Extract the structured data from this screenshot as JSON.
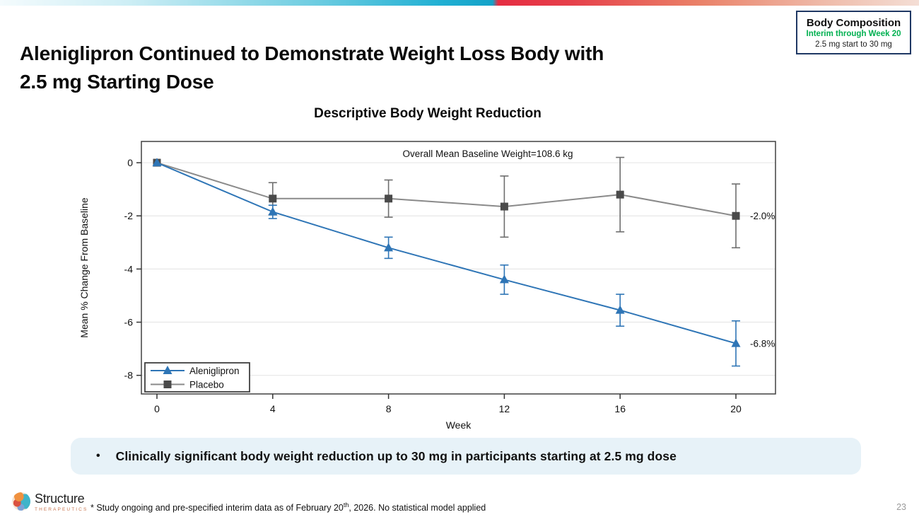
{
  "slide": {
    "title_line1": "Aleniglipron Continued to Demonstrate Weight Loss Body with",
    "title_line2": "2.5 mg Starting Dose",
    "page_number": "23"
  },
  "badge": {
    "title": "Body Composition",
    "subtitle": "Interim through Week 20",
    "detail": "2.5 mg start to 30 mg",
    "subtitle_color": "#00b050",
    "border_color": "#1f3864"
  },
  "callout": {
    "bullet": "•",
    "text": "Clinically significant body weight reduction up to 30 mg in participants starting at 2.5 mg dose",
    "bg_color": "#e7f2f8"
  },
  "footer": {
    "logo_name": "Structure",
    "logo_sub": "THERAPEUTICS",
    "footnote_pre": "* Study ongoing and pre-specified interim data as of February 20",
    "footnote_sup": "th",
    "footnote_post": ", 2026. No statistical model applied"
  },
  "chart_data": {
    "type": "line",
    "title": "Descriptive Body Weight Reduction",
    "annotation": "Overall Mean Baseline Weight=108.6 kg",
    "xlabel": "Week",
    "ylabel": "Mean % Change From Baseline",
    "x": [
      0,
      4,
      8,
      12,
      16,
      20
    ],
    "xticks": [
      0,
      4,
      8,
      12,
      16,
      20
    ],
    "yticks": [
      0,
      -2,
      -4,
      -6,
      -8
    ],
    "ylim": [
      -8.7,
      0.8
    ],
    "grid": true,
    "legend_position": "bottom-left",
    "series": [
      {
        "name": "Aleniglipron",
        "marker": "triangle",
        "color": "#2e75b6",
        "marker_color": "#2e75b6",
        "error_color": "#2e75b6",
        "values": [
          0,
          -1.85,
          -3.2,
          -4.4,
          -5.55,
          -6.8
        ],
        "errors": [
          0,
          0.25,
          0.4,
          0.55,
          0.6,
          0.85
        ],
        "end_label": "-6.8%"
      },
      {
        "name": "Placebo",
        "marker": "square",
        "color": "#8a8a8a",
        "marker_color": "#4a4a4a",
        "error_color": "#6e6e6e",
        "values": [
          0,
          -1.35,
          -1.35,
          -1.65,
          -1.2,
          -2.0
        ],
        "errors": [
          0,
          0.6,
          0.7,
          1.15,
          1.4,
          1.2
        ],
        "end_label": "-2.0%"
      }
    ]
  }
}
